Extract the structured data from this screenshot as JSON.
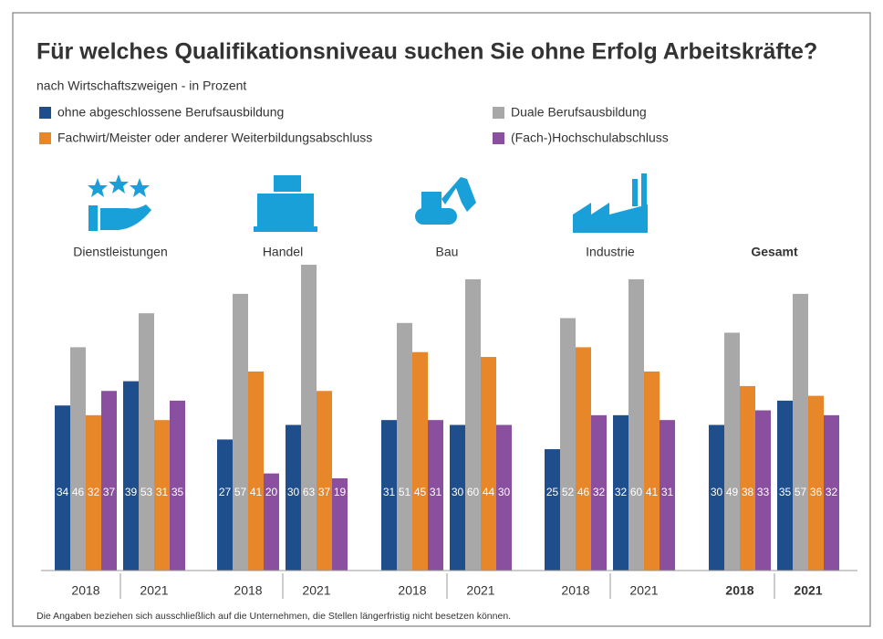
{
  "chart_data": {
    "type": "bar",
    "title": "Für welches Qualifikationsniveau suchen Sie ohne Erfolg Arbeitskräfte?",
    "subtitle": "nach Wirtschaftszweigen - in Prozent",
    "groups": [
      "Dienstleistungen",
      "Handel",
      "Bau",
      "Industrie",
      "Gesamt"
    ],
    "categories": [
      "2018",
      "2021",
      "2018",
      "2021",
      "2018",
      "2021",
      "2018",
      "2021",
      "2018",
      "2021"
    ],
    "series": [
      {
        "name": "ohne abgeschlossene Berufsausbildung",
        "color": "#1f4e8c",
        "values": [
          34,
          39,
          27,
          30,
          31,
          30,
          25,
          32,
          30,
          35
        ]
      },
      {
        "name": "Duale Berufsausbildung",
        "color": "#a8a8a8",
        "values": [
          46,
          53,
          57,
          63,
          51,
          60,
          52,
          60,
          49,
          57
        ]
      },
      {
        "name": "Fachwirt/Meister oder anderer Weiterbildungsabschluss",
        "color": "#e8872a",
        "values": [
          32,
          31,
          41,
          37,
          45,
          44,
          46,
          41,
          38,
          36
        ]
      },
      {
        "name": "(Fach-)Hochschulabschluss",
        "color": "#8a4f9e",
        "values": [
          37,
          35,
          20,
          19,
          31,
          30,
          32,
          31,
          33,
          32
        ]
      }
    ],
    "footnote": "Die Angaben beziehen sich ausschließlich auf die Unternehmen, die Stellen längerfristig nicht besetzen können."
  }
}
